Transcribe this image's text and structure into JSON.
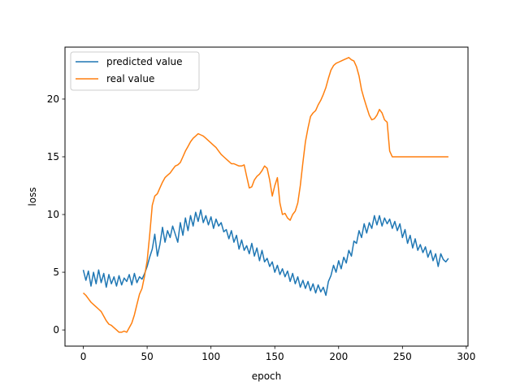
{
  "chart_data": {
    "type": "line",
    "xlabel": "epoch",
    "ylabel": "loss",
    "xlim": [
      -14.35,
      301.35
    ],
    "ylim": [
      -1.4,
      24.5
    ],
    "xticks": [
      0,
      50,
      100,
      150,
      200,
      250,
      300
    ],
    "yticks": [
      0,
      5,
      10,
      15,
      20
    ],
    "grid": false,
    "legend_position": "top-left",
    "series": [
      {
        "name": "predicted value",
        "color": "#1f77b4",
        "x": [
          0,
          2,
          4,
          6,
          8,
          10,
          12,
          14,
          16,
          18,
          20,
          22,
          24,
          26,
          28,
          30,
          32,
          34,
          36,
          38,
          40,
          42,
          44,
          46,
          48,
          50,
          52,
          54,
          56,
          58,
          60,
          62,
          64,
          66,
          68,
          70,
          72,
          74,
          76,
          78,
          80,
          82,
          84,
          86,
          88,
          90,
          92,
          94,
          96,
          98,
          100,
          102,
          104,
          106,
          108,
          110,
          112,
          114,
          116,
          118,
          120,
          122,
          124,
          126,
          128,
          130,
          132,
          134,
          136,
          138,
          140,
          142,
          144,
          146,
          148,
          150,
          152,
          154,
          156,
          158,
          160,
          162,
          164,
          166,
          168,
          170,
          172,
          174,
          176,
          178,
          180,
          182,
          184,
          186,
          188,
          190,
          192,
          194,
          196,
          198,
          200,
          202,
          204,
          206,
          208,
          210,
          212,
          214,
          216,
          218,
          220,
          222,
          224,
          226,
          228,
          230,
          232,
          234,
          236,
          238,
          240,
          242,
          244,
          246,
          248,
          250,
          252,
          254,
          256,
          258,
          260,
          262,
          264,
          266,
          268,
          270,
          272,
          274,
          276,
          278,
          280,
          282,
          284,
          286
        ],
        "y": [
          5.2,
          4.3,
          5.1,
          3.8,
          5.0,
          4.0,
          5.2,
          4.1,
          4.9,
          3.7,
          4.8,
          4.0,
          4.6,
          3.8,
          4.7,
          3.9,
          4.5,
          4.2,
          4.8,
          3.9,
          4.9,
          4.1,
          4.6,
          4.4,
          4.9,
          5.5,
          6.3,
          7.0,
          8.3,
          6.4,
          7.4,
          8.9,
          7.6,
          8.6,
          8.0,
          9.0,
          8.3,
          7.6,
          9.3,
          8.2,
          9.7,
          8.6,
          9.9,
          9.0,
          10.2,
          9.4,
          10.4,
          9.3,
          9.9,
          9.1,
          9.8,
          8.8,
          9.6,
          9.0,
          9.3,
          8.5,
          8.7,
          7.9,
          8.6,
          7.6,
          8.2,
          7.0,
          7.8,
          6.9,
          7.3,
          6.6,
          7.5,
          6.4,
          7.1,
          6.0,
          6.9,
          5.9,
          6.2,
          5.5,
          5.9,
          5.0,
          5.6,
          4.8,
          5.3,
          4.6,
          5.1,
          4.2,
          4.9,
          4.0,
          4.6,
          3.7,
          4.3,
          3.6,
          4.2,
          3.4,
          4.0,
          3.2,
          3.9,
          3.3,
          3.7,
          3.0,
          4.2,
          4.7,
          5.6,
          5.0,
          6.0,
          5.3,
          6.3,
          5.8,
          6.9,
          6.4,
          7.7,
          7.5,
          8.6,
          8.0,
          9.2,
          8.4,
          9.3,
          8.8,
          9.9,
          9.1,
          9.9,
          9.0,
          9.7,
          9.2,
          9.6,
          8.8,
          9.4,
          8.6,
          9.2,
          8.0,
          8.7,
          7.5,
          8.2,
          7.1,
          7.9,
          6.9,
          7.4,
          6.7,
          7.2,
          6.3,
          6.9,
          6.0,
          6.6,
          5.5,
          6.6,
          6.1,
          5.9,
          6.2
        ]
      },
      {
        "name": "real value",
        "color": "#ff7f0e",
        "x": [
          0,
          2,
          4,
          6,
          8,
          10,
          12,
          14,
          16,
          18,
          20,
          22,
          24,
          26,
          28,
          30,
          32,
          34,
          36,
          38,
          40,
          42,
          44,
          46,
          48,
          50,
          52,
          54,
          56,
          58,
          60,
          62,
          64,
          66,
          68,
          70,
          72,
          74,
          76,
          78,
          80,
          82,
          84,
          86,
          88,
          90,
          92,
          94,
          96,
          98,
          100,
          102,
          104,
          106,
          108,
          110,
          112,
          114,
          116,
          118,
          120,
          122,
          124,
          126,
          128,
          130,
          132,
          134,
          136,
          138,
          140,
          142,
          144,
          146,
          148,
          150,
          152,
          154,
          156,
          158,
          160,
          162,
          164,
          166,
          168,
          170,
          172,
          174,
          176,
          178,
          180,
          182,
          184,
          186,
          188,
          190,
          192,
          194,
          196,
          198,
          200,
          202,
          204,
          206,
          208,
          210,
          212,
          214,
          216,
          218,
          220,
          222,
          224,
          226,
          228,
          230,
          232,
          234,
          236,
          238,
          240,
          242,
          244,
          246,
          248,
          250,
          252,
          254,
          256,
          258,
          260,
          262,
          264,
          266,
          268,
          270,
          272,
          274,
          276,
          278,
          280,
          282,
          284,
          286
        ],
        "y": [
          3.2,
          3.0,
          2.7,
          2.4,
          2.2,
          2.0,
          1.8,
          1.6,
          1.2,
          0.8,
          0.5,
          0.4,
          0.2,
          0.0,
          -0.2,
          -0.2,
          -0.1,
          -0.2,
          0.2,
          0.6,
          1.3,
          2.2,
          3.1,
          3.6,
          4.7,
          6.0,
          8.2,
          10.8,
          11.6,
          11.8,
          12.3,
          12.8,
          13.2,
          13.4,
          13.6,
          13.9,
          14.2,
          14.3,
          14.5,
          15.0,
          15.5,
          15.9,
          16.3,
          16.6,
          16.8,
          17.0,
          16.9,
          16.8,
          16.6,
          16.4,
          16.2,
          16.0,
          15.8,
          15.5,
          15.2,
          15.0,
          14.8,
          14.6,
          14.4,
          14.4,
          14.3,
          14.2,
          14.2,
          14.3,
          13.3,
          12.3,
          12.4,
          13.0,
          13.3,
          13.5,
          13.8,
          14.2,
          14.0,
          13.0,
          11.6,
          12.5,
          13.2,
          11.0,
          10.0,
          10.1,
          9.7,
          9.5,
          10.0,
          10.3,
          11.0,
          12.5,
          14.5,
          16.3,
          17.5,
          18.5,
          18.8,
          19.0,
          19.5,
          19.9,
          20.4,
          21.0,
          21.8,
          22.5,
          22.9,
          23.1,
          23.2,
          23.3,
          23.4,
          23.5,
          23.6,
          23.4,
          23.3,
          22.8,
          22.0,
          20.8,
          20.0,
          19.3,
          18.6,
          18.2,
          18.3,
          18.6,
          19.1,
          18.8,
          18.2,
          18.0,
          15.5,
          15.0,
          15.0,
          15.0,
          15.0,
          15.0,
          15.0,
          15.0,
          15.0,
          15.0,
          15.0,
          15.0,
          15.0,
          15.0,
          15.0,
          15.0,
          15.0,
          15.0,
          15.0,
          15.0,
          15.0,
          15.0,
          15.0,
          15.0
        ]
      }
    ]
  }
}
